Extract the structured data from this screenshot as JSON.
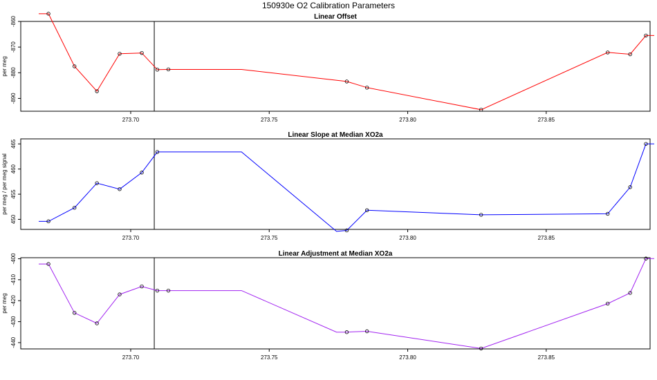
{
  "figure": {
    "title": "150930e   O2 Calibration Parameters"
  },
  "chart_data": [
    {
      "type": "line",
      "title": "Linear Offset",
      "xlabel": "",
      "ylabel": "per meg",
      "color": "#ff0000",
      "xlim": [
        273.6603,
        273.8875
      ],
      "ylim": [
        -895,
        -860
      ],
      "yticks": [
        -860,
        -870,
        -880,
        -890
      ],
      "xticks": [
        273.7,
        273.75,
        273.8,
        273.85
      ],
      "xtick_labels": [
        "273.70",
        "273.75",
        "273.80",
        "273.85"
      ],
      "vline": 273.7085,
      "x_line": [
        273.6668,
        273.6703,
        273.6797,
        273.6878,
        273.696,
        273.704,
        273.7096,
        273.7136,
        273.74,
        273.778,
        273.7853,
        273.8265,
        273.8722,
        273.8803,
        273.886,
        273.889
      ],
      "y_line": [
        -857.0,
        -857.0,
        -877.5,
        -887.2,
        -872.6,
        -872.3,
        -878.8,
        -878.7,
        -878.7,
        -883.4,
        -885.8,
        -894.4,
        -872.1,
        -872.8,
        -865.5,
        -865.5
      ],
      "points_x": [
        273.6703,
        273.6797,
        273.6878,
        273.696,
        273.704,
        273.7096,
        273.7136,
        273.778,
        273.7853,
        273.8265,
        273.8722,
        273.8803,
        273.886
      ],
      "points_y": [
        -857.0,
        -877.5,
        -887.2,
        -872.6,
        -872.3,
        -878.8,
        -878.7,
        -883.4,
        -885.8,
        -894.4,
        -872.1,
        -872.8,
        -865.5
      ]
    },
    {
      "type": "line",
      "title": "Linear Slope at Median XO2a",
      "xlabel": "",
      "ylabel": "per meg / per meg signal",
      "color": "#0000ff",
      "xlim": [
        273.6603,
        273.8875
      ],
      "ylim": [
        448.0,
        466.0
      ],
      "yticks": [
        450,
        455,
        460,
        465
      ],
      "xticks": [
        273.7,
        273.75,
        273.8,
        273.85
      ],
      "xtick_labels": [
        "273.70",
        "273.75",
        "273.80",
        "273.85"
      ],
      "vline": 273.7085,
      "x_line": [
        273.6668,
        273.6703,
        273.6797,
        273.6878,
        273.696,
        273.704,
        273.7096,
        273.74,
        273.7743,
        273.778,
        273.7853,
        273.8265,
        273.8722,
        273.8803,
        273.886,
        273.889
      ],
      "y_line": [
        449.6,
        449.6,
        452.3,
        457.2,
        456.0,
        459.3,
        463.4,
        463.4,
        447.6,
        447.8,
        451.8,
        450.9,
        451.1,
        456.4,
        465.0,
        465.0
      ],
      "points_x": [
        273.6703,
        273.6797,
        273.6878,
        273.696,
        273.704,
        273.7096,
        273.778,
        273.7853,
        273.8265,
        273.8722,
        273.8803,
        273.886
      ],
      "points_y": [
        449.6,
        452.3,
        457.2,
        456.0,
        459.3,
        463.4,
        447.8,
        451.8,
        450.9,
        451.1,
        456.4,
        465.0
      ]
    },
    {
      "type": "line",
      "title": "Linear Adjustment at Median XO2a",
      "xlabel": "",
      "ylabel": "per meg",
      "color": "#a020f0",
      "xlim": [
        273.6603,
        273.8875
      ],
      "ylim": [
        -443.0,
        -399.5
      ],
      "yticks": [
        -400,
        -410,
        -420,
        -430,
        -440
      ],
      "xticks": [
        273.7,
        273.75,
        273.8,
        273.85
      ],
      "xtick_labels": [
        "273.70",
        "273.75",
        "273.80",
        "273.85"
      ],
      "vline": 273.7085,
      "x_line": [
        273.6668,
        273.6703,
        273.6797,
        273.6878,
        273.696,
        273.704,
        273.7096,
        273.7136,
        273.74,
        273.7743,
        273.778,
        273.7853,
        273.8265,
        273.8722,
        273.8803,
        273.886,
        273.889
      ],
      "y_line": [
        -402.5,
        -402.5,
        -425.8,
        -430.8,
        -417.0,
        -413.2,
        -415.2,
        -415.2,
        -415.2,
        -435.0,
        -435.0,
        -434.6,
        -442.8,
        -421.4,
        -416.3,
        -399.9,
        -399.9
      ],
      "points_x": [
        273.6703,
        273.6797,
        273.6878,
        273.696,
        273.704,
        273.7096,
        273.7136,
        273.778,
        273.7853,
        273.8265,
        273.8722,
        273.8803,
        273.886
      ],
      "points_y": [
        -402.5,
        -425.8,
        -430.8,
        -417.0,
        -413.2,
        -415.2,
        -415.2,
        -435.0,
        -434.6,
        -442.8,
        -421.4,
        -416.3,
        -399.9
      ]
    }
  ]
}
